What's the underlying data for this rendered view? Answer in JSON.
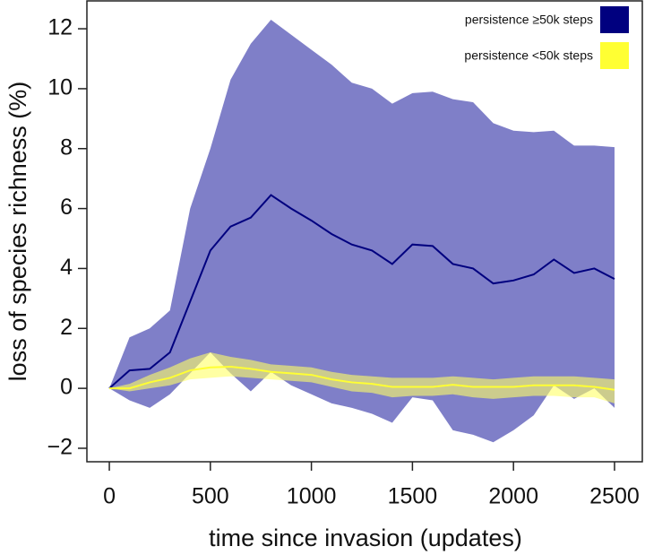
{
  "chart_data": {
    "type": "line_band",
    "x_label": "time since invasion (updates)",
    "y_label": "loss of species richness (%)",
    "x": [
      0,
      100,
      200,
      300,
      400,
      500,
      600,
      700,
      800,
      900,
      1000,
      1100,
      1200,
      1300,
      1400,
      1500,
      1600,
      1700,
      1800,
      1900,
      2000,
      2100,
      2200,
      2300,
      2400,
      2500
    ],
    "xlim": [
      -111,
      2642
    ],
    "ylim": [
      -2.45,
      12.93
    ],
    "xticks": [
      0,
      500,
      1000,
      1500,
      2000,
      2500
    ],
    "yticks": [
      {
        "value": -2,
        "label": "−2"
      },
      0,
      2,
      4,
      6,
      8,
      10,
      12
    ],
    "legend_position": "upper right",
    "series": [
      {
        "name": "persistence ≥50k steps",
        "color": "#00007f",
        "band_color": "#7f7fc8",
        "values": [
          0,
          0.6,
          0.65,
          1.2,
          2.9,
          4.6,
          5.4,
          5.7,
          6.45,
          6.0,
          5.6,
          5.15,
          4.8,
          4.6,
          4.15,
          4.8,
          4.75,
          4.15,
          4.0,
          3.5,
          3.6,
          3.8,
          4.3,
          3.85,
          4.0,
          3.65
        ],
        "upper": [
          0,
          1.7,
          2.0,
          2.6,
          6.0,
          8.0,
          10.3,
          11.5,
          12.3,
          11.8,
          11.3,
          10.8,
          10.2,
          10.0,
          9.5,
          9.85,
          9.9,
          9.65,
          9.55,
          8.85,
          8.6,
          8.55,
          8.6,
          8.1,
          8.1,
          8.05
        ],
        "lower": [
          0,
          -0.4,
          -0.65,
          -0.2,
          0.5,
          1.2,
          0.5,
          -0.1,
          0.55,
          0.1,
          -0.2,
          -0.5,
          -0.65,
          -0.85,
          -1.15,
          -0.3,
          -0.4,
          -1.4,
          -1.55,
          -1.8,
          -1.4,
          -0.9,
          0.1,
          -0.35,
          0.0,
          -0.65
        ]
      },
      {
        "name": "persistence <50k steps",
        "color": "#ffff33",
        "band_color": "#ffff66",
        "values": [
          0,
          0.0,
          0.2,
          0.35,
          0.6,
          0.7,
          0.72,
          0.65,
          0.55,
          0.5,
          0.45,
          0.3,
          0.2,
          0.15,
          0.05,
          0.05,
          0.05,
          0.12,
          0.05,
          0.05,
          0.05,
          0.1,
          0.1,
          0.1,
          0.05,
          -0.05
        ],
        "upper": [
          0,
          0.15,
          0.45,
          0.7,
          1.0,
          1.2,
          1.05,
          0.95,
          0.8,
          0.75,
          0.7,
          0.55,
          0.45,
          0.4,
          0.35,
          0.35,
          0.35,
          0.4,
          0.35,
          0.3,
          0.35,
          0.4,
          0.4,
          0.4,
          0.35,
          0.3
        ],
        "lower": [
          0,
          -0.1,
          0,
          0.1,
          0.3,
          0.35,
          0.4,
          0.35,
          0.3,
          0.25,
          0.2,
          0.05,
          -0.1,
          -0.15,
          -0.3,
          -0.25,
          -0.25,
          -0.2,
          -0.3,
          -0.35,
          -0.3,
          -0.25,
          -0.25,
          -0.3,
          -0.3,
          -0.5
        ]
      }
    ]
  }
}
